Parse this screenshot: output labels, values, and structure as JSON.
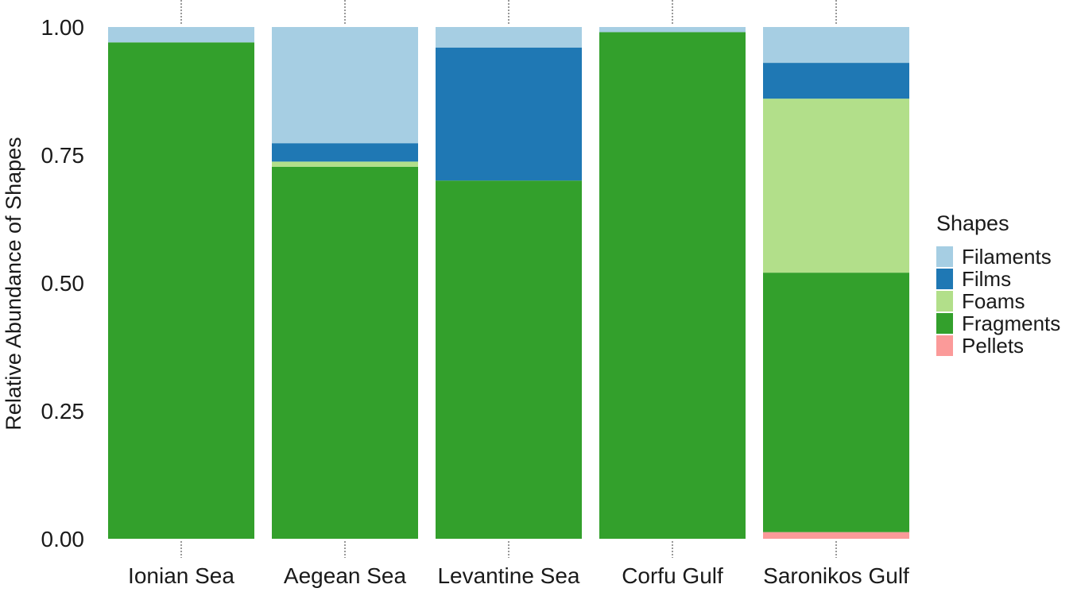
{
  "chart_data": {
    "type": "bar",
    "stacked": true,
    "title": "",
    "xlabel": "",
    "ylabel": "Relative Abundance of Shapes",
    "ylim": [
      0,
      1
    ],
    "yticks": [
      "0.00",
      "0.25",
      "0.50",
      "0.75",
      "1.00"
    ],
    "categories": [
      "Ionian Sea",
      "Aegean Sea",
      "Levantine Sea",
      "Corfu Gulf",
      "Saronikos Gulf"
    ],
    "grid": false,
    "legend": {
      "title": "Shapes",
      "position": "right"
    },
    "series": [
      {
        "name": "Pellets",
        "color": "#fb9a99",
        "values": [
          0.0,
          0.0,
          0.0,
          0.0,
          0.013
        ]
      },
      {
        "name": "Fragments",
        "color": "#33a02c",
        "values": [
          0.97,
          0.727,
          0.7,
          0.99,
          0.507
        ]
      },
      {
        "name": "Foams",
        "color": "#b2df8a",
        "values": [
          0.0,
          0.01,
          0.0,
          0.0,
          0.34
        ]
      },
      {
        "name": "Films",
        "color": "#1f78b4",
        "values": [
          0.0,
          0.036,
          0.26,
          0.0,
          0.07
        ]
      },
      {
        "name": "Filaments",
        "color": "#a6cee3",
        "values": [
          0.03,
          0.227,
          0.04,
          0.01,
          0.07
        ]
      }
    ],
    "legend_order": [
      "Filaments",
      "Films",
      "Foams",
      "Fragments",
      "Pellets"
    ]
  }
}
